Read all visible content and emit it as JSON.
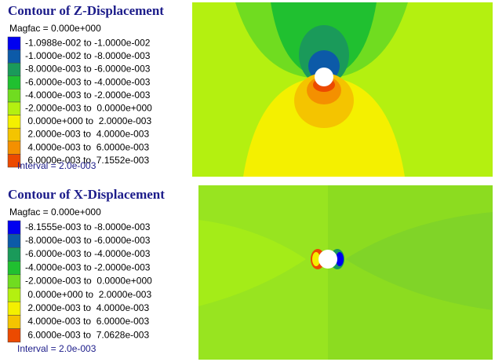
{
  "panels": [
    {
      "title": "Contour of Z-Displacement",
      "magfac": "Magfac = 0.000e+000",
      "legend": [
        {
          "color": "#0000f0",
          "label": "-1.0988e-002 to -1.0000e-002"
        },
        {
          "color": "#0c5aa8",
          "label": "-1.0000e-002 to -8.0000e-003"
        },
        {
          "color": "#1a9a5a",
          "label": "-8.0000e-003 to -6.0000e-003"
        },
        {
          "color": "#20c030",
          "label": "-6.0000e-003 to -4.0000e-003"
        },
        {
          "color": "#70dc20",
          "label": "-4.0000e-003 to -2.0000e-003"
        },
        {
          "color": "#b4f010",
          "label": "-2.0000e-003 to  0.0000e+000"
        },
        {
          "color": "#f4f000",
          "label": " 0.0000e+000 to  2.0000e-003"
        },
        {
          "color": "#f4c400",
          "label": " 2.0000e-003 to  4.0000e-003"
        },
        {
          "color": "#f49000",
          "label": " 4.0000e-003 to  6.0000e-003"
        },
        {
          "color": "#ec4a00",
          "label": " 6.0000e-003 to  7.1552e-003"
        }
      ],
      "interval": "Interval = 2.0e-003"
    },
    {
      "title": "Contour of X-Displacement",
      "magfac": "Magfac = 0.000e+000",
      "legend": [
        {
          "color": "#0000f0",
          "label": "-8.1555e-003 to -8.0000e-003"
        },
        {
          "color": "#0c5aa8",
          "label": "-8.0000e-003 to -6.0000e-003"
        },
        {
          "color": "#1a9a5a",
          "label": "-6.0000e-003 to -4.0000e-003"
        },
        {
          "color": "#20c030",
          "label": "-4.0000e-003 to -2.0000e-003"
        },
        {
          "color": "#70dc20",
          "label": "-2.0000e-003 to  0.0000e+000"
        },
        {
          "color": "#b4f010",
          "label": " 0.0000e+000 to  2.0000e-003"
        },
        {
          "color": "#f4f000",
          "label": " 2.0000e-003 to  4.0000e-003"
        },
        {
          "color": "#f4c400",
          "label": " 4.0000e-003 to  6.0000e-003"
        },
        {
          "color": "#ec4a00",
          "label": " 6.0000e-003 to  7.0628e-003"
        }
      ],
      "interval": "Interval = 2.0e-003"
    }
  ]
}
